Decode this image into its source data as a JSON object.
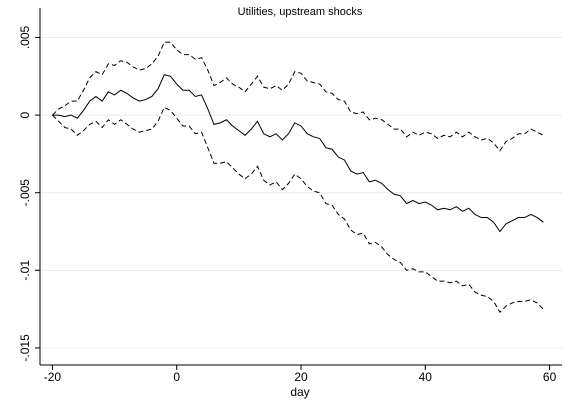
{
  "chart_data": {
    "type": "line",
    "title": "Utilities, upstream shocks",
    "xlabel": "day",
    "x": [
      -20,
      -19,
      -18,
      -17,
      -16,
      -15,
      -14,
      -13,
      -12,
      -11,
      -10,
      -9,
      -8,
      -7,
      -6,
      -5,
      -4,
      -3,
      -2,
      -1,
      0,
      1,
      2,
      3,
      4,
      5,
      6,
      7,
      8,
      9,
      10,
      11,
      12,
      13,
      14,
      15,
      16,
      17,
      18,
      19,
      20,
      21,
      22,
      23,
      24,
      25,
      26,
      27,
      28,
      29,
      30,
      31,
      32,
      33,
      34,
      35,
      36,
      37,
      38,
      39,
      40,
      41,
      42,
      43,
      44,
      45,
      46,
      47,
      48,
      49,
      50,
      51,
      52,
      53,
      54,
      55,
      56,
      57,
      58,
      59
    ],
    "series": [
      {
        "color": "#000000",
        "dashed": false,
        "values": [
          0,
          0.0,
          -0.0001,
          0.0,
          -0.0002,
          0.0003,
          0.0009,
          0.0012,
          0.0009,
          0.0015,
          0.0013,
          0.0016,
          0.0014,
          0.0011,
          0.0009,
          0.001,
          0.0012,
          0.0017,
          0.0026,
          0.0025,
          0.002,
          0.0016,
          0.0016,
          0.0012,
          0.0013,
          0.0004,
          -0.0006,
          -0.0005,
          -0.0003,
          -0.0007,
          -0.001,
          -0.0013,
          -0.0009,
          -0.0004,
          -0.0012,
          -0.0014,
          -0.0012,
          -0.0016,
          -0.0012,
          -0.0005,
          -0.0007,
          -0.0012,
          -0.0014,
          -0.0015,
          -0.0021,
          -0.0022,
          -0.0027,
          -0.0029,
          -0.0036,
          -0.0038,
          -0.0037,
          -0.0043,
          -0.0042,
          -0.0044,
          -0.0048,
          -0.0051,
          -0.0052,
          -0.0057,
          -0.0055,
          -0.0057,
          -0.0056,
          -0.0058,
          -0.0061,
          -0.006,
          -0.0061,
          -0.0059,
          -0.0062,
          -0.006,
          -0.0064,
          -0.0066,
          -0.0066,
          -0.0069,
          -0.0075,
          -0.007,
          -0.0068,
          -0.0066,
          -0.0066,
          -0.0064,
          -0.0066,
          -0.0069
        ]
      },
      {
        "color": "#000000",
        "dashed": true,
        "values": [
          0,
          0.0004,
          0.0006,
          0.0009,
          0.0009,
          0.0016,
          0.0024,
          0.0028,
          0.0026,
          0.0033,
          0.0032,
          0.0035,
          0.0034,
          0.0031,
          0.0029,
          0.003,
          0.0033,
          0.0038,
          0.0047,
          0.0047,
          0.0042,
          0.0039,
          0.0039,
          0.0036,
          0.0037,
          0.0029,
          0.0019,
          0.0021,
          0.0024,
          0.002,
          0.0018,
          0.0015,
          0.002,
          0.0025,
          0.0018,
          0.0017,
          0.0019,
          0.0016,
          0.002,
          0.0028,
          0.0027,
          0.0022,
          0.0021,
          0.002,
          0.0015,
          0.0014,
          0.001,
          0.0009,
          0.0002,
          0.0001,
          0.0002,
          -0.0003,
          -0.0002,
          -0.0003,
          -0.0006,
          -0.0009,
          -0.0009,
          -0.0014,
          -0.0011,
          -0.0013,
          -0.0011,
          -0.0012,
          -0.0015,
          -0.0013,
          -0.0014,
          -0.0011,
          -0.0014,
          -0.0011,
          -0.0014,
          -0.0016,
          -0.0015,
          -0.0018,
          -0.0023,
          -0.0017,
          -0.0015,
          -0.0012,
          -0.0012,
          -0.0009,
          -0.0011,
          -0.0013
        ]
      },
      {
        "color": "#000000",
        "dashed": true,
        "values": [
          0,
          -0.0004,
          -0.0008,
          -0.0009,
          -0.0013,
          -0.001,
          -0.0006,
          -0.0004,
          -0.0008,
          -0.0003,
          -0.0006,
          -0.0003,
          -0.0006,
          -0.0009,
          -0.0011,
          -0.001,
          -0.0009,
          -0.0004,
          0.0005,
          0.0003,
          -0.0002,
          -0.0007,
          -0.0007,
          -0.0012,
          -0.0011,
          -0.0021,
          -0.0031,
          -0.0031,
          -0.003,
          -0.0034,
          -0.0038,
          -0.0041,
          -0.0038,
          -0.0033,
          -0.0042,
          -0.0045,
          -0.0043,
          -0.0048,
          -0.0044,
          -0.0038,
          -0.0041,
          -0.0046,
          -0.0049,
          -0.005,
          -0.0057,
          -0.0058,
          -0.0064,
          -0.0067,
          -0.0074,
          -0.0077,
          -0.0076,
          -0.0083,
          -0.0082,
          -0.0085,
          -0.009,
          -0.0093,
          -0.0095,
          -0.01,
          -0.0099,
          -0.0101,
          -0.0101,
          -0.0104,
          -0.0107,
          -0.0107,
          -0.0108,
          -0.0107,
          -0.011,
          -0.0109,
          -0.0114,
          -0.0116,
          -0.0117,
          -0.012,
          -0.0127,
          -0.0123,
          -0.0121,
          -0.012,
          -0.012,
          -0.0119,
          -0.0121,
          -0.0125
        ]
      }
    ],
    "xlim": [
      -22,
      62
    ],
    "xticks": [
      -20,
      0,
      20,
      40,
      60
    ],
    "ylim": [
      -0.0161,
      0.0069
    ],
    "yticks": [
      {
        "value": 0.005,
        "label": ".005"
      },
      0,
      {
        "value": -0.005,
        "label": "-.005"
      },
      {
        "value": -0.01,
        "label": "-.01"
      },
      {
        "value": -0.015,
        "label": "-.015"
      }
    ],
    "grid": true
  }
}
